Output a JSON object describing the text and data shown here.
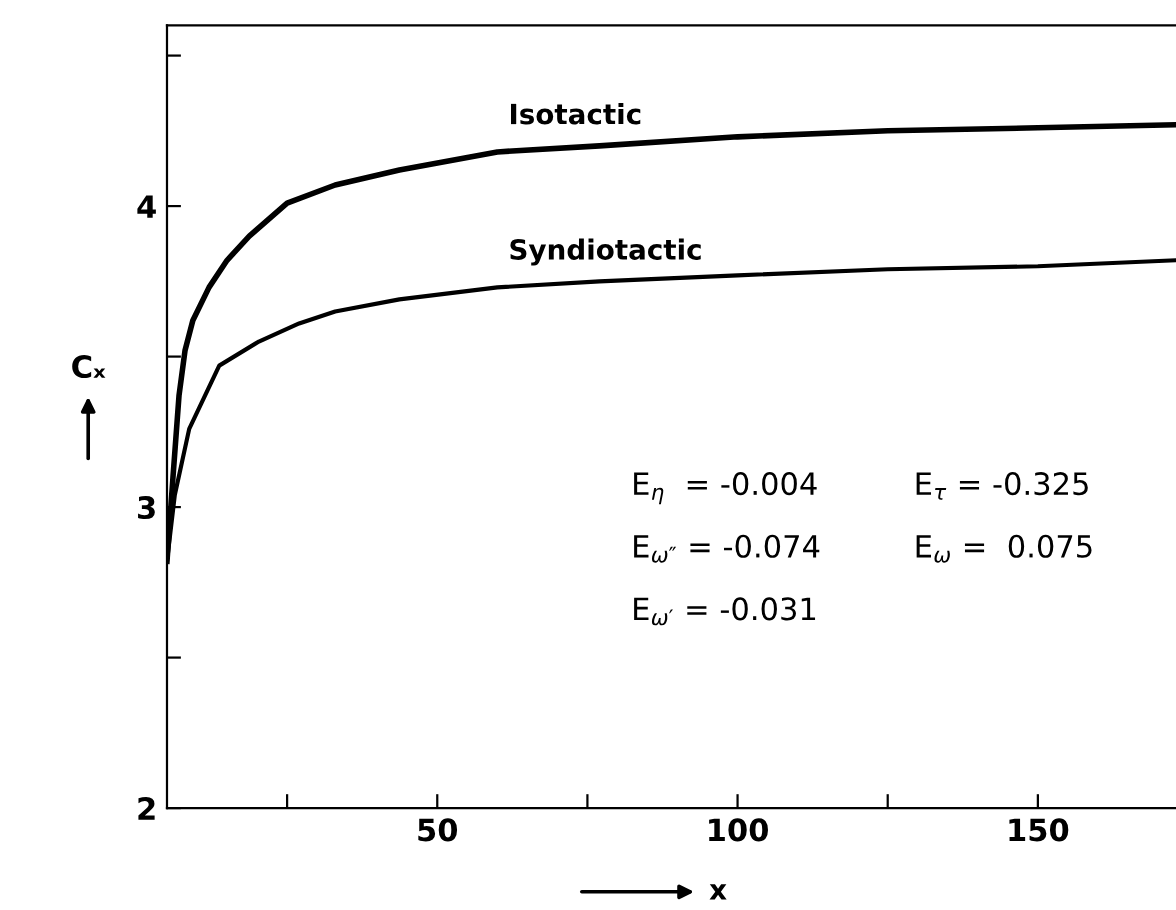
{
  "chart_data": {
    "type": "line",
    "xlabel": "x",
    "ylabel": "Cₓ",
    "xlim": [
      5,
      173
    ],
    "xticks": [
      {
        "value": 25,
        "label": null
      },
      50,
      {
        "value": 75,
        "label": null
      },
      100,
      {
        "value": 125,
        "label": null
      },
      150
    ],
    "ylim": [
      2,
      4.6
    ],
    "yticks": [
      2,
      {
        "value": 2.5,
        "label": null
      },
      3,
      {
        "value": 3.5,
        "label": null
      },
      4,
      {
        "value": 4.5,
        "label": null
      }
    ],
    "grid": false,
    "legend": false,
    "marker": "none",
    "line_style": "solid",
    "series": [
      {
        "name": "Isotactic",
        "color": "#000000",
        "x": [
          5,
          6,
          7,
          8,
          9.3,
          12,
          15,
          18.7,
          25,
          33,
          43.7,
          60,
          77,
          100,
          125,
          150,
          173
        ],
        "values": [
          2.82,
          3.1,
          3.37,
          3.52,
          3.62,
          3.73,
          3.82,
          3.9,
          4.01,
          4.07,
          4.12,
          4.18,
          4.2,
          4.23,
          4.25,
          4.26,
          4.27
        ]
      },
      {
        "name": "Syndiotactic",
        "color": "#000000",
        "x": [
          5,
          6.3,
          8.7,
          13.7,
          20.3,
          27,
          33,
          43.7,
          60,
          77,
          100,
          125,
          150,
          173
        ],
        "values": [
          2.82,
          3.04,
          3.26,
          3.47,
          3.55,
          3.61,
          3.65,
          3.69,
          3.73,
          3.75,
          3.77,
          3.79,
          3.8,
          3.82
        ]
      }
    ],
    "annotations": [
      "E$_{η}$  = -0.004",
      "E$_{τ}$ = -0.325",
      "E$_{ω″}$ = -0.074",
      "E$_{ω}$ =  0.075",
      "E$_{ω′}$ = -0.031"
    ]
  }
}
